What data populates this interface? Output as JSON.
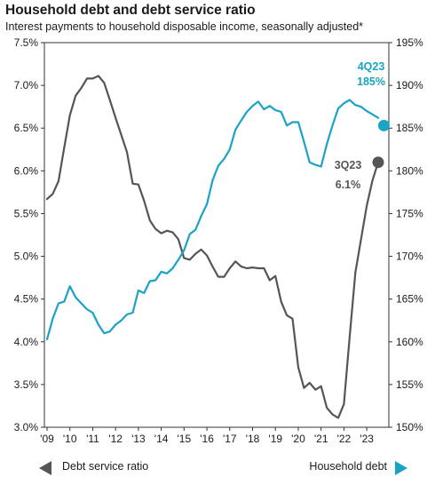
{
  "title": "Household debt and debt service ratio",
  "subtitle": "Interest payments to household disposable income, seasonally adjusted*",
  "colors": {
    "debt_service": "#555555",
    "household_debt": "#1aa3c4"
  },
  "chart_data": {
    "type": "line",
    "title": "Household debt and debt service ratio",
    "subtitle": "Interest payments to household disposable income, seasonally adjusted*",
    "x_ticks": [
      "'09",
      "'10",
      "'11",
      "'12",
      "'13",
      "'14",
      "'15",
      "'16",
      "'17",
      "'18",
      "'19",
      "'20",
      "'21",
      "'22",
      "'23"
    ],
    "y_left": {
      "ticks": [
        "7.5%",
        "7.0%",
        "6.5%",
        "6.0%",
        "5.5%",
        "5.0%",
        "4.5%",
        "4.0%",
        "3.5%",
        "3.0%"
      ],
      "range": [
        3.0,
        7.5
      ]
    },
    "y_right": {
      "ticks": [
        "195%",
        "190%",
        "185%",
        "180%",
        "175%",
        "170%",
        "165%",
        "160%",
        "155%",
        "150%"
      ],
      "range": [
        150,
        195
      ]
    },
    "grid": false,
    "series": [
      {
        "name": "Debt service ratio",
        "axis": "left",
        "color": "#555555",
        "x": [
          2009.0,
          2009.25,
          2009.5,
          2009.75,
          2010.0,
          2010.25,
          2010.5,
          2010.75,
          2011.0,
          2011.25,
          2011.5,
          2011.75,
          2012.0,
          2012.25,
          2012.5,
          2012.75,
          2013.0,
          2013.25,
          2013.5,
          2013.75,
          2014.0,
          2014.25,
          2014.5,
          2014.75,
          2015.0,
          2015.25,
          2015.5,
          2015.75,
          2016.0,
          2016.25,
          2016.5,
          2016.75,
          2017.0,
          2017.25,
          2017.5,
          2017.75,
          2018.0,
          2018.25,
          2018.5,
          2018.75,
          2019.0,
          2019.25,
          2019.5,
          2019.75,
          2020.0,
          2020.25,
          2020.5,
          2020.75,
          2021.0,
          2021.25,
          2021.5,
          2021.75,
          2022.0,
          2022.25,
          2022.5,
          2022.75,
          2023.0,
          2023.25,
          2023.5
        ],
        "values": [
          5.67,
          5.73,
          5.88,
          6.27,
          6.65,
          6.88,
          6.97,
          7.08,
          7.08,
          7.11,
          7.03,
          6.83,
          6.62,
          6.42,
          6.22,
          5.85,
          5.84,
          5.65,
          5.42,
          5.32,
          5.27,
          5.3,
          5.28,
          5.2,
          4.98,
          4.96,
          5.03,
          5.08,
          5.01,
          4.88,
          4.76,
          4.76,
          4.86,
          4.94,
          4.88,
          4.86,
          4.87,
          4.86,
          4.86,
          4.72,
          4.77,
          4.47,
          4.31,
          4.27,
          3.7,
          3.46,
          3.52,
          3.44,
          3.48,
          3.23,
          3.15,
          3.11,
          3.27,
          4.05,
          4.81,
          5.2,
          5.59,
          5.89,
          6.1
        ]
      },
      {
        "name": "Household debt",
        "axis": "right",
        "color": "#1aa3c4",
        "x": [
          2009.0,
          2009.25,
          2009.5,
          2009.75,
          2010.0,
          2010.25,
          2010.5,
          2010.75,
          2011.0,
          2011.25,
          2011.5,
          2011.75,
          2012.0,
          2012.25,
          2012.5,
          2012.75,
          2013.0,
          2013.25,
          2013.5,
          2013.75,
          2014.0,
          2014.25,
          2014.5,
          2014.75,
          2015.0,
          2015.25,
          2015.5,
          2015.75,
          2016.0,
          2016.25,
          2016.5,
          2016.75,
          2017.0,
          2017.25,
          2017.5,
          2017.75,
          2018.0,
          2018.25,
          2018.5,
          2018.75,
          2019.0,
          2019.25,
          2019.5,
          2019.75,
          2020.0,
          2020.25,
          2020.5,
          2020.75,
          2021.0,
          2021.25,
          2021.5,
          2021.75,
          2022.0,
          2022.25,
          2022.5,
          2022.75,
          2023.0,
          2023.25,
          2023.5
        ],
        "values": [
          160.3,
          162.7,
          164.5,
          164.7,
          166.5,
          165.2,
          164.5,
          163.8,
          163.4,
          162.0,
          161.0,
          161.2,
          162.0,
          162.5,
          163.2,
          163.4,
          166.0,
          165.7,
          167.1,
          167.2,
          168.2,
          168.0,
          168.6,
          169.6,
          170.7,
          172.6,
          173.1,
          174.7,
          176.1,
          178.9,
          180.6,
          181.4,
          182.5,
          184.8,
          185.9,
          186.9,
          187.6,
          188.1,
          187.2,
          187.6,
          187.1,
          186.9,
          185.3,
          185.7,
          185.7,
          183.4,
          181.0,
          180.7,
          180.5,
          183.1,
          185.3,
          187.3,
          187.9,
          188.3,
          187.7,
          187.5,
          187.0,
          186.6,
          186.2
        ]
      }
    ],
    "annotations": [
      {
        "label": "4Q23",
        "value": "185%",
        "series": "Household debt",
        "x": 2023.75,
        "y": 185.3
      },
      {
        "label": "3Q23",
        "value": "6.1%",
        "series": "Debt service ratio",
        "x": 2023.5,
        "y": 6.1
      }
    ],
    "legend": [
      {
        "label": "Debt service ratio",
        "marker": "left-triangle",
        "color": "#555555",
        "placement": "bottom-left"
      },
      {
        "label": "Household debt",
        "marker": "right-triangle",
        "color": "#1aa3c4",
        "placement": "bottom-right"
      }
    ]
  }
}
